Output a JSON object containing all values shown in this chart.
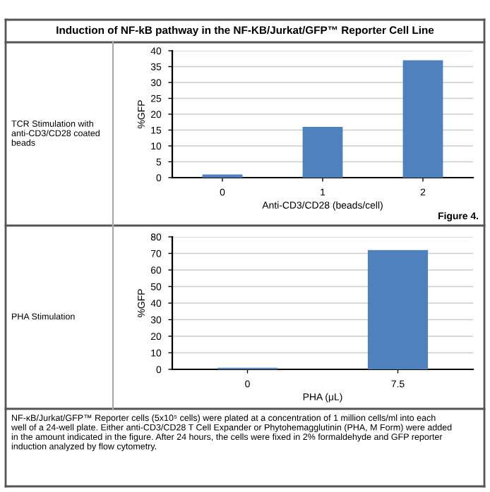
{
  "chart_data": [
    {
      "type": "bar",
      "title": "Induction of NF-kB pathway in the NF-KB/Jurkat/GFP™ Reporter Cell Line",
      "categories": [
        "0",
        "1",
        "2"
      ],
      "values": [
        1,
        16,
        37
      ],
      "color": "#4f81bd",
      "xlabel": "Anti-CD3/CD28 (beads/cell)",
      "ylabel": "%GFP",
      "ylim": [
        0,
        40
      ],
      "yticks": [
        0,
        5,
        10,
        15,
        20,
        25,
        30,
        35,
        40
      ],
      "grid": "y",
      "annotations": [
        "TCR Stimulation with anti-CD3/CD28 coated beads",
        "Figure 4."
      ]
    },
    {
      "type": "bar",
      "categories": [
        "0",
        "7.5"
      ],
      "values": [
        1,
        72
      ],
      "color": "#4f81bd",
      "xlabel": "PHA (μL)",
      "ylabel": "%GFP",
      "ylim": [
        0,
        80
      ],
      "yticks": [
        0,
        10,
        20,
        30,
        40,
        50,
        60,
        70,
        80
      ],
      "grid": "y",
      "annotations": [
        "PHA Stimulation",
        "NF-κB/Jurkat/GFP™ Reporter cells (5x10⁵ cells) were plated at a concentration of 1 million cells/ml into each well of a 24-well plate. Either anti-CD3/CD28 T Cell Expander or Phytohemagglutinin (PHA, M Form) were added in the amount indicated in the figure. After 24 hours, the cells were fixed in 2% formaldehyde and GFP reporter induction analyzed by flow cytometry."
      ]
    }
  ]
}
